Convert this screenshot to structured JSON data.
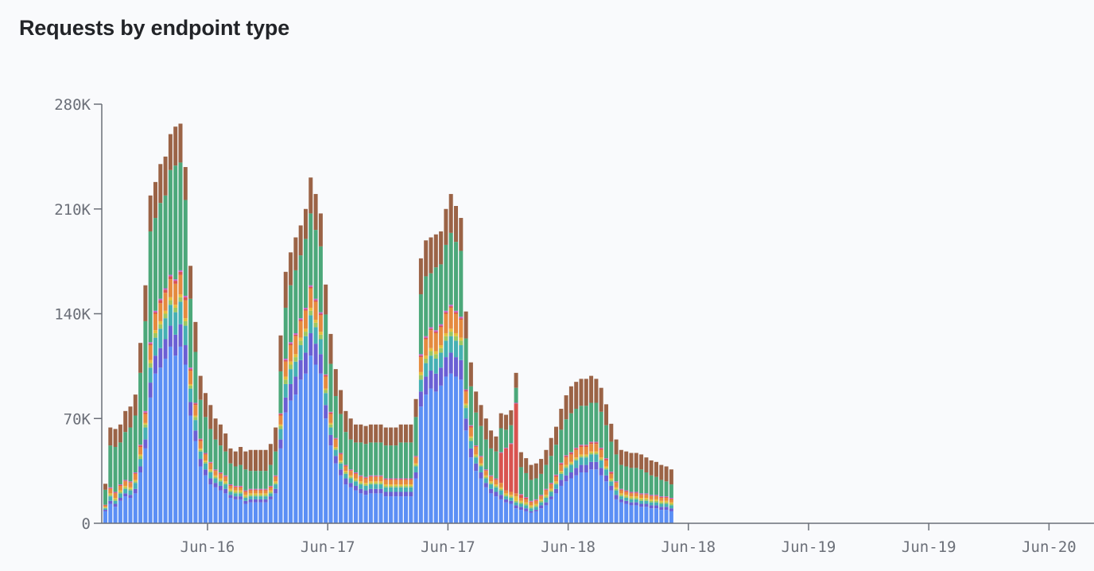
{
  "chart_data": {
    "type": "bar",
    "stacked": true,
    "title": "Requests by endpoint type",
    "xlabel": "",
    "ylabel": "",
    "ylim": [
      0,
      280000
    ],
    "y_ticks": [
      0,
      70000,
      140000,
      210000,
      280000
    ],
    "y_tick_labels": [
      "0",
      "70K",
      "140K",
      "210K",
      "280K"
    ],
    "x_tick_labels": [
      "Jun-16",
      "Jun-17",
      "Jun-17",
      "Jun-18",
      "Jun-18",
      "Jun-19",
      "Jun-19",
      "Jun-20"
    ],
    "grid": false,
    "legend": "none",
    "series": [
      {
        "color": "#5b8ff5",
        "values": [
          8000,
          13000,
          11000,
          15000,
          18000,
          17000,
          20000,
          34000,
          50000,
          84000,
          100000,
          104000,
          110000,
          118000,
          112000,
          118000,
          106000,
          72000,
          55000,
          38000,
          32000,
          26000,
          24000,
          22000,
          20000,
          17000,
          16000,
          16000,
          13000,
          14000,
          14000,
          14000,
          14000,
          16000,
          20000,
          50000,
          74000,
          82000,
          86000,
          96000,
          100000,
          112000,
          106000,
          100000,
          70000,
          52000,
          40000,
          32000,
          26000,
          24000,
          22000,
          20000,
          19000,
          20000,
          20000,
          20000,
          18000,
          18000,
          18000,
          18000,
          18000,
          18000,
          30000,
          78000,
          86000,
          90000,
          88000,
          92000,
          98000,
          100000,
          98000,
          96000,
          62000,
          44000,
          35000,
          30000,
          24000,
          20000,
          18000,
          16000,
          14000,
          13000,
          10000,
          9000,
          8000,
          7000,
          8000,
          10000,
          12000,
          16000,
          20000,
          25000,
          28000,
          30000,
          32000,
          34000,
          34000,
          36000,
          36000,
          32000,
          28000,
          22000,
          16000,
          14000,
          13000,
          12000,
          12000,
          11000,
          11000,
          10000,
          10000,
          9000,
          9000,
          8000
        ]
      },
      {
        "color": "#6a5fd4",
        "values": [
          1000,
          2000,
          2000,
          2000,
          2000,
          2000,
          3000,
          4000,
          6000,
          10000,
          12000,
          13000,
          13000,
          14000,
          14000,
          15000,
          13000,
          9000,
          7000,
          5000,
          4000,
          4000,
          3000,
          3000,
          3000,
          2000,
          2000,
          2000,
          2000,
          2000,
          2000,
          2000,
          2000,
          2000,
          3000,
          6000,
          10000,
          11000,
          12000,
          13000,
          14000,
          15000,
          14000,
          13000,
          9000,
          7000,
          5000,
          4000,
          4000,
          3000,
          3000,
          3000,
          3000,
          3000,
          3000,
          3000,
          3000,
          3000,
          3000,
          3000,
          3000,
          3000,
          4000,
          10000,
          12000,
          12000,
          12000,
          12000,
          13000,
          14000,
          13000,
          13000,
          8000,
          6000,
          5000,
          4000,
          3000,
          3000,
          3000,
          3000,
          2000,
          2000,
          2000,
          2000,
          2000,
          1000,
          1000,
          2000,
          2000,
          2000,
          3000,
          4000,
          4000,
          4000,
          5000,
          5000,
          5000,
          5000,
          5000,
          5000,
          4000,
          3000,
          3000,
          2000,
          2000,
          2000,
          2000,
          2000,
          2000,
          2000,
          2000,
          2000,
          2000,
          2000
        ]
      },
      {
        "color": "#45b0b3",
        "values": [
          1000,
          3000,
          2000,
          3000,
          3000,
          3000,
          4000,
          5000,
          8000,
          10000,
          12000,
          13000,
          14000,
          14000,
          15000,
          15000,
          13000,
          9000,
          7000,
          5000,
          4000,
          4000,
          3000,
          3000,
          3000,
          2000,
          2000,
          2000,
          2000,
          2000,
          2000,
          2000,
          2000,
          2000,
          3000,
          7000,
          9000,
          10000,
          10000,
          10000,
          11000,
          12000,
          11000,
          10000,
          8000,
          5000,
          4000,
          4000,
          3000,
          3000,
          3000,
          3000,
          3000,
          3000,
          3000,
          3000,
          3000,
          3000,
          3000,
          3000,
          3000,
          3000,
          4000,
          8000,
          9000,
          10000,
          10000,
          10000,
          11000,
          11000,
          11000,
          10000,
          7000,
          5000,
          4000,
          4000,
          3000,
          3000,
          3000,
          3000,
          2000,
          2000,
          2000,
          2000,
          2000,
          2000,
          2000,
          2000,
          3000,
          3000,
          3000,
          4000,
          5000,
          5000,
          5000,
          5000,
          5000,
          5000,
          5000,
          5000,
          4000,
          3000,
          3000,
          2000,
          2000,
          2000,
          2000,
          2000,
          2000,
          2000,
          2000,
          2000,
          2000,
          2000
        ]
      },
      {
        "color": "#9ec760",
        "values": [
          500,
          1000,
          1000,
          1000,
          1000,
          1000,
          1000,
          2000,
          2000,
          3000,
          3000,
          3000,
          3000,
          3000,
          3000,
          3000,
          3000,
          2000,
          2000,
          1000,
          1000,
          1000,
          1000,
          1000,
          1000,
          1000,
          1000,
          1000,
          1000,
          1000,
          1000,
          1000,
          1000,
          1000,
          1000,
          2000,
          3000,
          3000,
          3000,
          3000,
          3000,
          3000,
          3000,
          3000,
          2000,
          2000,
          1000,
          1000,
          1000,
          1000,
          1000,
          1000,
          1000,
          1000,
          1000,
          1000,
          1000,
          1000,
          1000,
          1000,
          1000,
          1000,
          1000,
          3000,
          3000,
          3000,
          3000,
          3000,
          3000,
          3000,
          3000,
          3000,
          2000,
          2000,
          1000,
          1000,
          1000,
          1000,
          1000,
          1000,
          1000,
          1000,
          1000,
          1000,
          1000,
          1000,
          1000,
          1000,
          1000,
          1000,
          1000,
          1000,
          1000,
          1000,
          1000,
          1000,
          1000,
          1000,
          1000,
          1000,
          1000,
          1000,
          1000,
          1000,
          1000,
          1000,
          1000,
          1000,
          1000,
          1000,
          1000,
          1000,
          1000,
          1000
        ]
      },
      {
        "color": "#e6bd3c",
        "values": [
          500,
          1000,
          1000,
          1000,
          1000,
          1000,
          1000,
          1000,
          1000,
          2000,
          2000,
          2000,
          2000,
          2000,
          2000,
          2000,
          2000,
          1000,
          1000,
          1000,
          1000,
          1000,
          1000,
          1000,
          1000,
          1000,
          1000,
          1000,
          1000,
          1000,
          1000,
          1000,
          1000,
          1000,
          1000,
          1000,
          2000,
          2000,
          2000,
          2000,
          2000,
          2000,
          2000,
          2000,
          1000,
          1000,
          1000,
          1000,
          1000,
          1000,
          1000,
          1000,
          1000,
          1000,
          1000,
          1000,
          1000,
          1000,
          1000,
          1000,
          1000,
          1000,
          1000,
          2000,
          2000,
          2000,
          2000,
          2000,
          2000,
          2000,
          2000,
          2000,
          1000,
          1000,
          1000,
          1000,
          1000,
          1000,
          1000,
          1000,
          1000,
          1000,
          3000,
          1000,
          1000,
          1000,
          1000,
          1000,
          1000,
          1000,
          1000,
          1000,
          1000,
          1000,
          1000,
          1000,
          1000,
          1000,
          1000,
          1000,
          1000,
          1000,
          1000,
          1000,
          1000,
          1000,
          1000,
          1000,
          1000,
          1000,
          1000,
          1000,
          1000,
          1000
        ]
      },
      {
        "color": "#e58a3e",
        "values": [
          1000,
          3000,
          3000,
          3000,
          3000,
          3000,
          4000,
          5000,
          6000,
          10000,
          11000,
          12000,
          12000,
          12000,
          14000,
          13000,
          12000,
          9000,
          7000,
          5000,
          4000,
          4000,
          3000,
          3000,
          3000,
          2000,
          2000,
          2000,
          2000,
          2000,
          2000,
          2000,
          2000,
          2000,
          3000,
          6000,
          10000,
          11000,
          12000,
          11000,
          12000,
          13000,
          12000,
          11000,
          8000,
          6000,
          5000,
          4000,
          3000,
          3000,
          3000,
          3000,
          3000,
          3000,
          3000,
          3000,
          3000,
          3000,
          3000,
          3000,
          3000,
          3000,
          4000,
          10000,
          11000,
          12000,
          12000,
          12000,
          13000,
          14000,
          13000,
          12000,
          8000,
          6000,
          5000,
          4000,
          3000,
          3000,
          3000,
          3000,
          2000,
          2000,
          2000,
          2000,
          2000,
          2000,
          2000,
          2000,
          3000,
          3000,
          3000,
          4000,
          5000,
          5000,
          5000,
          5000,
          5000,
          5000,
          5000,
          5000,
          4000,
          3000,
          3000,
          2000,
          2000,
          2000,
          2000,
          2000,
          2000,
          2000,
          2000,
          2000,
          2000,
          2000
        ]
      },
      {
        "color": "#d9534f",
        "values": [
          200,
          500,
          500,
          500,
          500,
          500,
          500,
          1000,
          1000,
          1000,
          1000,
          2000,
          2000,
          2000,
          2000,
          2000,
          2000,
          1000,
          1000,
          1000,
          500,
          500,
          500,
          500,
          500,
          500,
          500,
          500,
          500,
          500,
          500,
          500,
          500,
          500,
          500,
          1000,
          1000,
          1000,
          1000,
          1000,
          1000,
          1000,
          1000,
          1000,
          1000,
          1000,
          500,
          500,
          500,
          500,
          500,
          500,
          500,
          500,
          500,
          500,
          500,
          500,
          500,
          500,
          500,
          500,
          500,
          1000,
          1000,
          1000,
          1000,
          1000,
          1000,
          1000,
          1000,
          1000,
          1000,
          1000,
          500,
          500,
          500,
          500,
          500,
          20000,
          28000,
          32000,
          60000,
          2000,
          1000,
          500,
          500,
          500,
          500,
          500,
          1000,
          1000,
          1000,
          1000,
          1000,
          1000,
          1000,
          1000,
          1000,
          1000,
          1000,
          1000,
          500,
          500,
          500,
          500,
          500,
          500,
          500,
          500,
          500,
          500,
          500,
          500
        ]
      },
      {
        "color": "#c760c8",
        "values": [
          200,
          500,
          500,
          500,
          500,
          500,
          500,
          500,
          1000,
          1000,
          1000,
          1000,
          1000,
          1000,
          1000,
          1000,
          1000,
          1000,
          500,
          500,
          500,
          500,
          500,
          500,
          500,
          500,
          500,
          500,
          500,
          500,
          500,
          500,
          500,
          500,
          500,
          500,
          1000,
          1000,
          1000,
          1000,
          1000,
          1000,
          1000,
          1000,
          500,
          500,
          500,
          500,
          500,
          500,
          500,
          500,
          500,
          500,
          500,
          500,
          500,
          500,
          500,
          500,
          500,
          500,
          500,
          1000,
          1000,
          1000,
          1000,
          1000,
          1000,
          1000,
          1000,
          1000,
          500,
          500,
          500,
          500,
          500,
          500,
          500,
          500,
          500,
          500,
          500,
          500,
          500,
          500,
          500,
          500,
          500,
          500,
          500,
          500,
          500,
          500,
          500,
          500,
          500,
          500,
          500,
          500,
          500,
          500,
          500,
          500,
          500,
          500,
          500,
          500,
          500,
          500,
          500,
          500,
          500,
          500
        ]
      },
      {
        "color": "#4ca87a",
        "values": [
          10000,
          28000,
          30000,
          28000,
          32000,
          36000,
          38000,
          48000,
          60000,
          74000,
          62000,
          64000,
          62000,
          70000,
          76000,
          72000,
          64000,
          46000,
          34000,
          26000,
          24000,
          22000,
          20000,
          18000,
          16000,
          14000,
          13000,
          14000,
          14000,
          12000,
          12000,
          12000,
          12000,
          14000,
          16000,
          28000,
          34000,
          38000,
          42000,
          42000,
          46000,
          48000,
          46000,
          44000,
          40000,
          32000,
          28000,
          26000,
          22000,
          20000,
          20000,
          22000,
          22000,
          22000,
          22000,
          22000,
          22000,
          22000,
          22000,
          24000,
          24000,
          24000,
          26000,
          40000,
          40000,
          36000,
          42000,
          40000,
          44000,
          48000,
          46000,
          44000,
          34000,
          26000,
          22000,
          20000,
          20000,
          18000,
          18000,
          16000,
          12000,
          12000,
          10000,
          18000,
          16000,
          14000,
          14000,
          14000,
          16000,
          18000,
          20000,
          22000,
          24000,
          26000,
          26000,
          26000,
          26000,
          26000,
          26000,
          24000,
          22000,
          20000,
          18000,
          16000,
          16000,
          16000,
          16000,
          16000,
          14000,
          13000,
          12000,
          11000,
          10000,
          9000
        ]
      },
      {
        "color": "#9b6346",
        "values": [
          4000,
          12000,
          12000,
          12000,
          14000,
          14000,
          14000,
          20000,
          24000,
          24000,
          24000,
          26000,
          26000,
          24000,
          26000,
          26000,
          22000,
          22000,
          20000,
          16000,
          16000,
          16000,
          14000,
          14000,
          12000,
          10000,
          10000,
          12000,
          12000,
          14000,
          14000,
          14000,
          14000,
          14000,
          16000,
          24000,
          24000,
          22000,
          22000,
          20000,
          20000,
          24000,
          24000,
          22000,
          20000,
          20000,
          18000,
          16000,
          14000,
          14000,
          12000,
          12000,
          12000,
          12000,
          12000,
          12000,
          12000,
          12000,
          12000,
          12000,
          12000,
          12000,
          12000,
          24000,
          24000,
          24000,
          22000,
          22000,
          24000,
          26000,
          24000,
          22000,
          18000,
          16000,
          14000,
          14000,
          14000,
          12000,
          10000,
          10000,
          10000,
          10000,
          10000,
          10000,
          10000,
          10000,
          10000,
          10000,
          10000,
          12000,
          12000,
          14000,
          16000,
          18000,
          18000,
          18000,
          18000,
          18000,
          16000,
          16000,
          14000,
          12000,
          10000,
          10000,
          10000,
          10000,
          10000,
          10000,
          10000,
          10000,
          10000,
          10000,
          10000,
          10000
        ]
      }
    ]
  }
}
